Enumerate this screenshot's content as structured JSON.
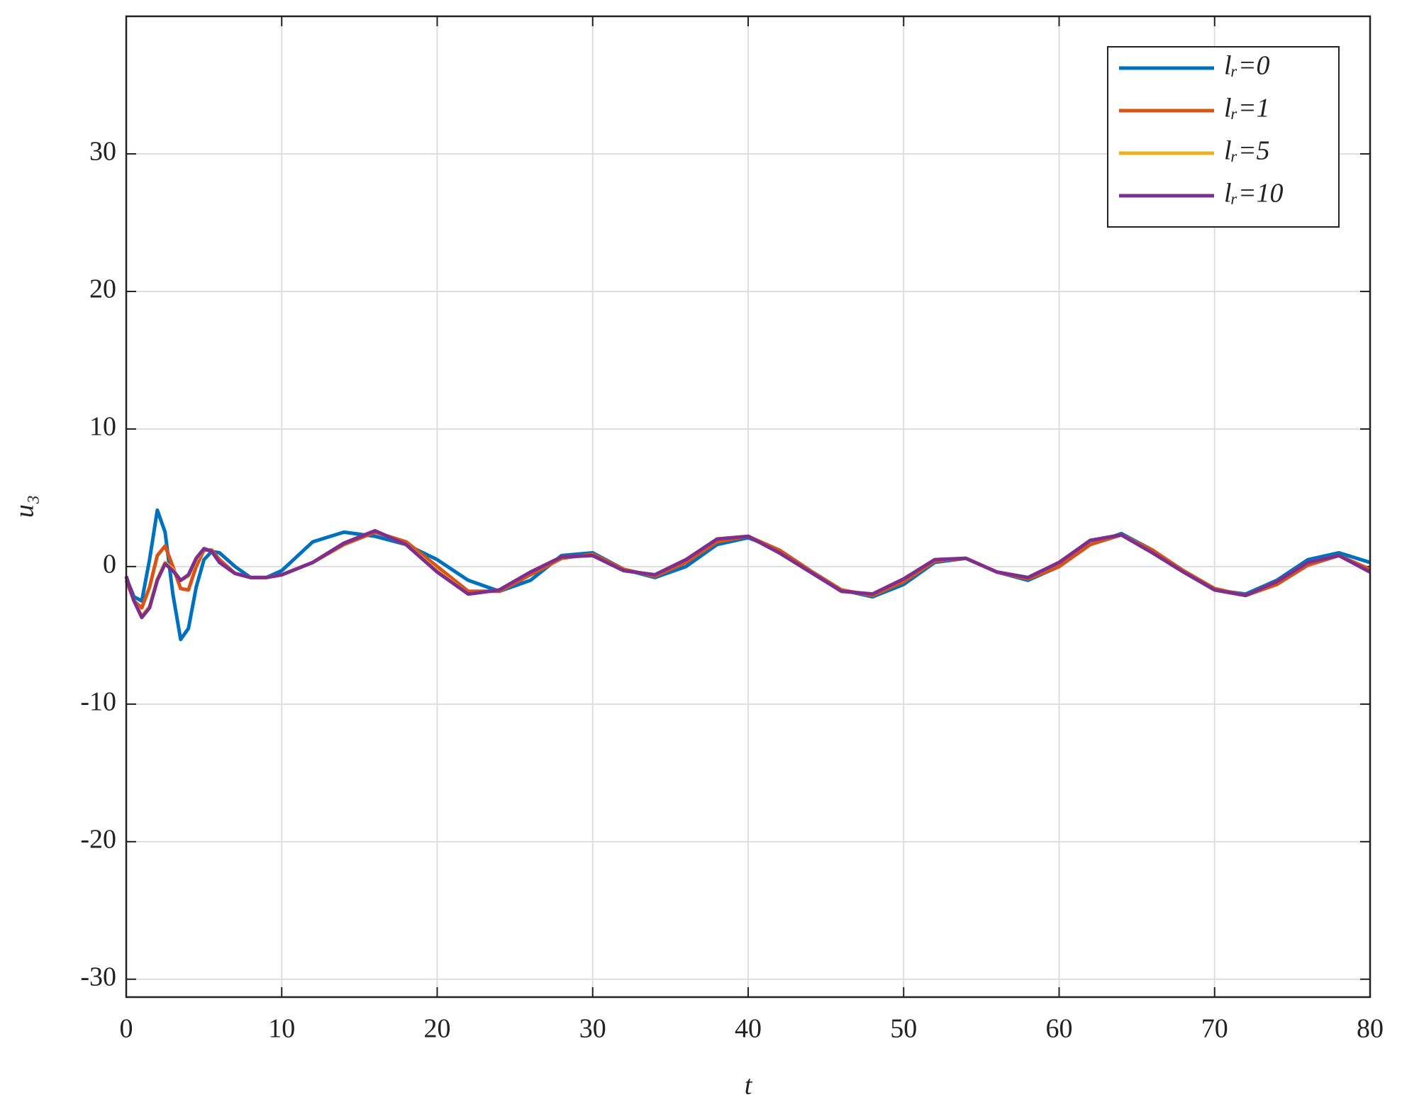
{
  "chart_data": {
    "type": "line",
    "xlabel": "t",
    "ylabel": "u₃",
    "x": [
      0,
      0.5,
      1,
      1.5,
      2,
      2.5,
      3,
      3.5,
      4,
      4.5,
      5,
      5.5,
      6,
      7,
      8,
      9,
      10,
      12,
      14,
      16,
      18,
      20,
      22,
      24,
      26,
      28,
      30,
      32,
      34,
      36,
      38,
      40,
      42,
      44,
      46,
      48,
      50,
      52,
      54,
      56,
      58,
      60,
      62,
      64,
      66,
      68,
      70,
      72,
      74,
      76,
      78,
      80
    ],
    "series": [
      {
        "name": "lᵣ=0",
        "color": "#0072BD",
        "values": [
          -0.8,
          -2.2,
          -2.5,
          0.5,
          4.1,
          2.5,
          -2,
          -5.3,
          -4.5,
          -1.5,
          0.5,
          1.1,
          1,
          0,
          -0.8,
          -0.8,
          -0.3,
          1.8,
          2.5,
          2.2,
          1.6,
          0.5,
          -1,
          -1.8,
          -1,
          0.8,
          1,
          -0.2,
          -0.8,
          0,
          1.6,
          2.1,
          1.2,
          -0.3,
          -1.7,
          -2.2,
          -1.3,
          0.3,
          0.6,
          -0.4,
          -1,
          0,
          1.6,
          2.4,
          1.2,
          -0.4,
          -1.7,
          -2,
          -1,
          0.5,
          1,
          0.3
        ]
      },
      {
        "name": "lᵣ=1",
        "color": "#D95319",
        "values": [
          -1,
          -2.5,
          -3,
          -1.5,
          0.8,
          1.5,
          0,
          -1.6,
          -1.7,
          0,
          1.2,
          1.2,
          0.5,
          -0.5,
          -0.8,
          -0.8,
          -0.6,
          0.3,
          1.6,
          2.5,
          1.8,
          0,
          -1.8,
          -1.8,
          -0.6,
          0.6,
          0.9,
          -0.2,
          -0.7,
          0.3,
          1.8,
          2.2,
          1.2,
          -0.3,
          -1.7,
          -2.1,
          -1.1,
          0.4,
          0.6,
          -0.4,
          -0.9,
          0,
          1.6,
          2.3,
          1.2,
          -0.3,
          -1.6,
          -2.1,
          -1.3,
          0.1,
          0.8,
          -0.2
        ]
      },
      {
        "name": "lᵣ=5",
        "color": "#EDB120",
        "values": [
          -0.7,
          -2.5,
          -3.6,
          -2.9,
          -0.9,
          0.3,
          -0.2,
          -1,
          -0.7,
          0.5,
          1.3,
          1.1,
          0.3,
          -0.5,
          -0.8,
          -0.8,
          -0.6,
          0.3,
          1.7,
          2.6,
          1.6,
          -0.3,
          -2,
          -1.7,
          -0.4,
          0.7,
          0.8,
          -0.3,
          -0.6,
          0.5,
          2,
          2.2,
          1,
          -0.4,
          -1.8,
          -2,
          -0.9,
          0.5,
          0.6,
          -0.4,
          -0.8,
          0.3,
          1.9,
          2.3,
          1,
          -0.4,
          -1.7,
          -2.1,
          -1.1,
          0.3,
          0.8,
          -0.4
        ]
      },
      {
        "name": "lᵣ=10",
        "color": "#7E2F8E",
        "values": [
          -0.7,
          -2.5,
          -3.7,
          -3,
          -1,
          0.2,
          -0.3,
          -1,
          -0.6,
          0.6,
          1.3,
          1.1,
          0.3,
          -0.5,
          -0.8,
          -0.8,
          -0.6,
          0.3,
          1.7,
          2.6,
          1.6,
          -0.4,
          -2,
          -1.7,
          -0.4,
          0.7,
          0.8,
          -0.3,
          -0.6,
          0.5,
          2,
          2.2,
          1,
          -0.4,
          -1.8,
          -2,
          -0.9,
          0.5,
          0.6,
          -0.4,
          -0.8,
          0.3,
          1.9,
          2.3,
          1,
          -0.4,
          -1.7,
          -2.1,
          -1.1,
          0.3,
          0.8,
          -0.4
        ]
      }
    ],
    "xlim": [
      0,
      80
    ],
    "xticks": [
      0,
      10,
      20,
      30,
      40,
      50,
      60,
      70,
      80
    ],
    "ylim": [
      -31.3,
      40
    ],
    "yticks": [
      -30,
      -20,
      -10,
      0,
      10,
      20,
      30
    ],
    "grid": true,
    "legend": "northeast"
  }
}
